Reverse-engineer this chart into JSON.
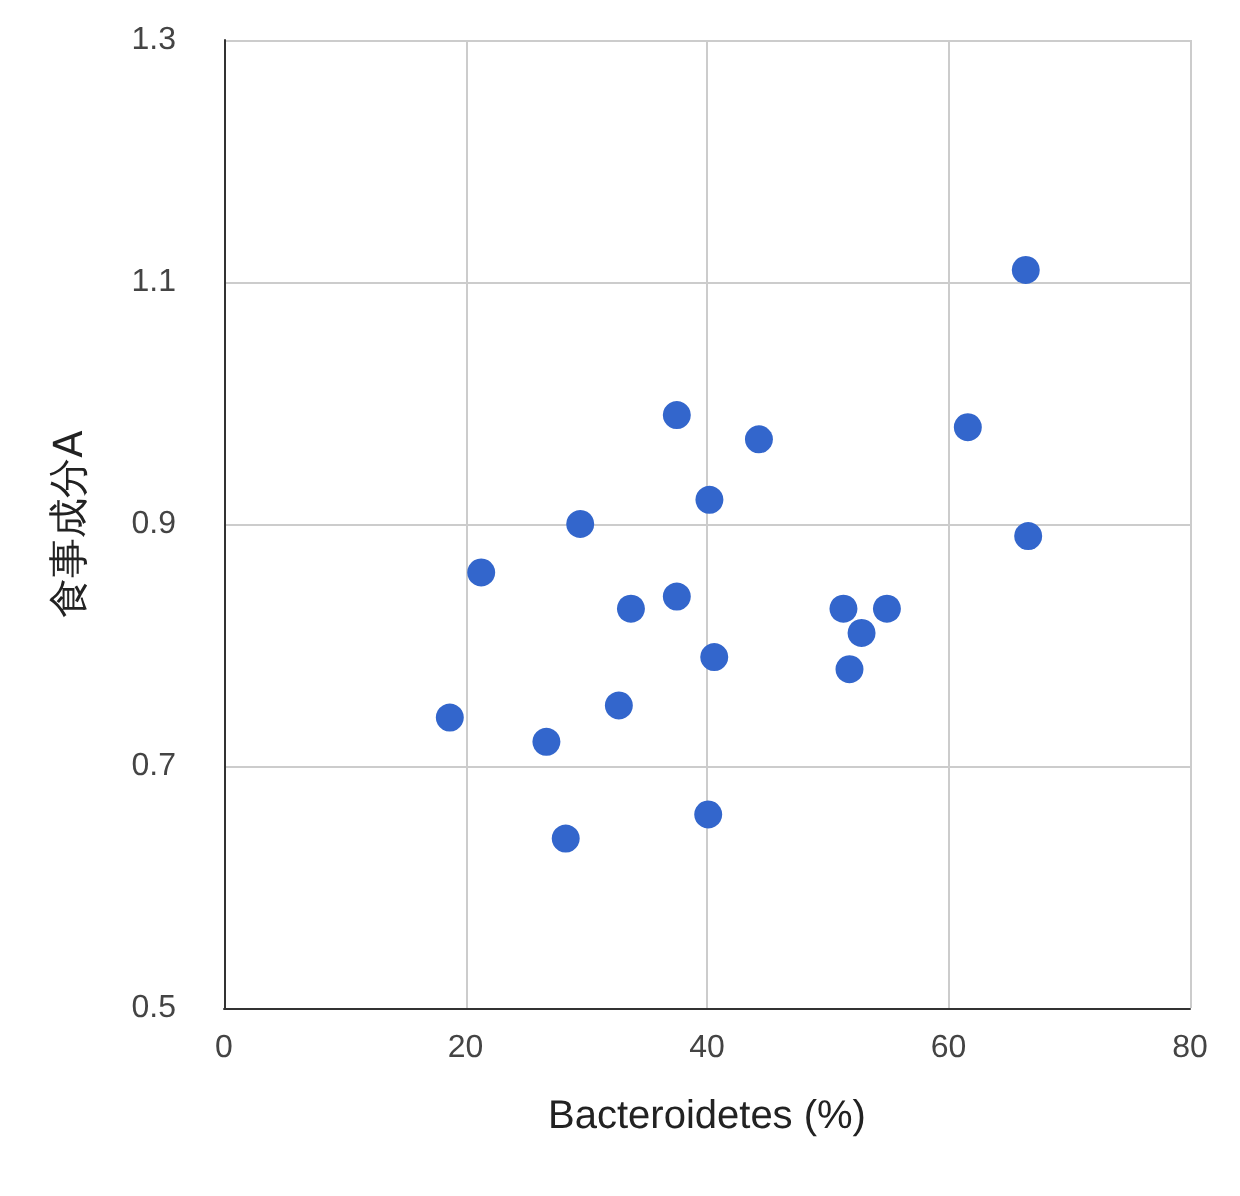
{
  "chart_data": {
    "type": "scatter",
    "xlabel": "Bacteroidetes (%)",
    "ylabel": "食事成分A",
    "x": [
      66.4,
      61.6,
      66.6,
      37.5,
      44.3,
      40.2,
      29.5,
      21.3,
      37.5,
      33.7,
      40.6,
      32.7,
      18.7,
      26.7,
      40.1,
      28.3,
      51.3,
      54.9,
      52.8,
      51.8
    ],
    "values": [
      1.11,
      0.98,
      0.89,
      0.99,
      0.97,
      0.92,
      0.9,
      0.86,
      0.84,
      0.83,
      0.79,
      0.75,
      0.74,
      0.72,
      0.66,
      0.64,
      0.83,
      0.83,
      0.81,
      0.78
    ],
    "color": "#3366cc",
    "marker": "circle",
    "xlim": [
      0,
      80
    ],
    "xticks": [
      0,
      20,
      40,
      60,
      80
    ],
    "ylim": [
      0.5,
      1.3
    ],
    "yticks": [
      0.5,
      0.7,
      0.9,
      1.1,
      1.3
    ],
    "grid": true
  }
}
